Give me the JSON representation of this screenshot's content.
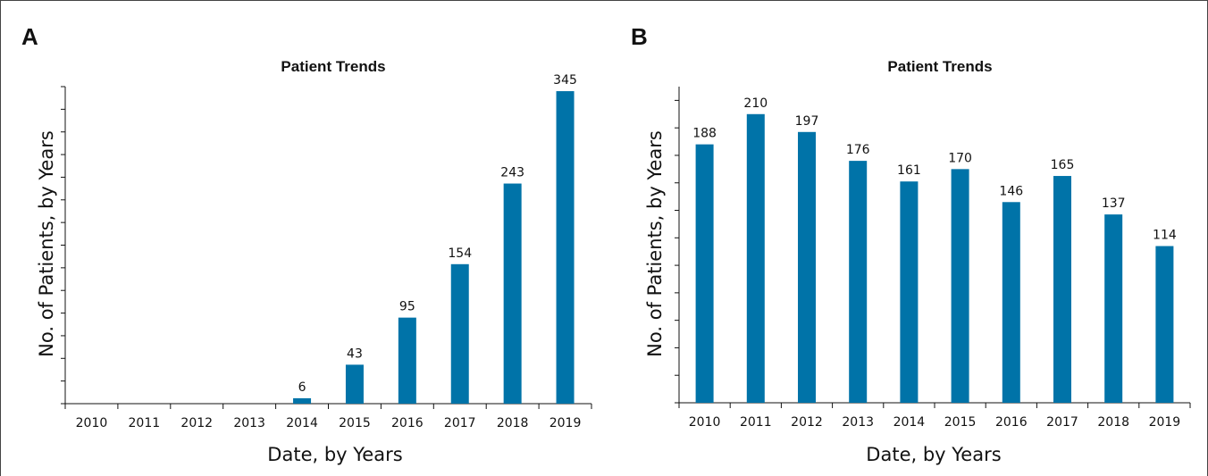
{
  "chart_data": [
    {
      "panel": "A",
      "type": "bar",
      "title": "Patient Trends",
      "xlabel": "Date, by Years",
      "ylabel": "No. of Patients, by Years",
      "categories": [
        "2010",
        "2011",
        "2012",
        "2013",
        "2014",
        "2015",
        "2016",
        "2017",
        "2018",
        "2019"
      ],
      "values": [
        0,
        0,
        0,
        0,
        6,
        43,
        95,
        154,
        243,
        345
      ],
      "data_labels": [
        "",
        "",
        "",
        "",
        "6",
        "43",
        "95",
        "154",
        "243",
        "345"
      ],
      "ylim": [
        0,
        350
      ],
      "y_tick_step": 25,
      "bar_color": "#0073a8",
      "grid": false,
      "legend": "none"
    },
    {
      "panel": "B",
      "type": "bar",
      "title": "Patient Trends",
      "xlabel": "Date, by Years",
      "ylabel": "No. of Patients, by Years",
      "categories": [
        "2010",
        "2011",
        "2012",
        "2013",
        "2014",
        "2015",
        "2016",
        "2017",
        "2018",
        "2019"
      ],
      "values": [
        188,
        210,
        197,
        176,
        161,
        170,
        146,
        165,
        137,
        114
      ],
      "data_labels": [
        "188",
        "210",
        "197",
        "176",
        "161",
        "170",
        "146",
        "165",
        "137",
        "114"
      ],
      "ylim": [
        0,
        230
      ],
      "y_tick_step": 20,
      "bar_color": "#0073a8",
      "grid": false,
      "legend": "none"
    }
  ]
}
